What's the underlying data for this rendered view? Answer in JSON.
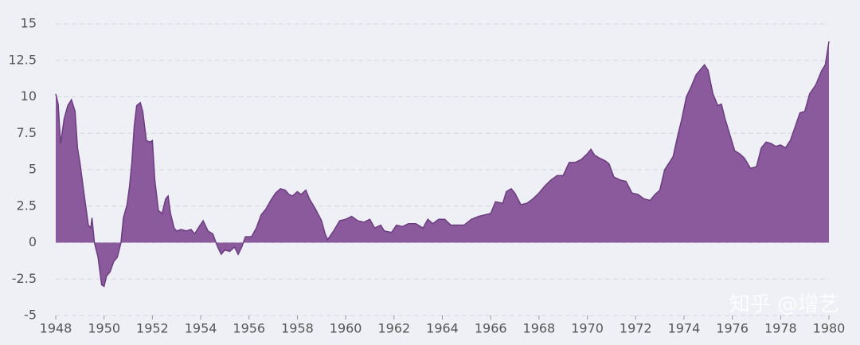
{
  "chart_data": {
    "type": "area",
    "watermark": "知乎 @增艺",
    "color": "#8a5a9c",
    "line_color": "#6b3d80",
    "grid": true,
    "xlim": [
      1948,
      1980
    ],
    "xticks": [
      1948,
      1950,
      1952,
      1954,
      1956,
      1958,
      1960,
      1962,
      1964,
      1966,
      1968,
      1970,
      1972,
      1974,
      1976,
      1978,
      1980
    ],
    "ylim": [
      -5,
      15
    ],
    "yticks": [
      -5,
      -2.5,
      0,
      2.5,
      5,
      7.5,
      10,
      12.5,
      15
    ],
    "x": [
      1948.0,
      1948.1,
      1948.2,
      1948.35,
      1948.5,
      1948.65,
      1948.8,
      1948.9,
      1949.0,
      1949.2,
      1949.35,
      1949.45,
      1949.5,
      1949.6,
      1949.75,
      1949.9,
      1950.0,
      1950.1,
      1950.25,
      1950.4,
      1950.55,
      1950.7,
      1950.8,
      1950.95,
      1951.05,
      1951.15,
      1951.25,
      1951.35,
      1951.5,
      1951.6,
      1951.75,
      1951.9,
      1952.0,
      1952.1,
      1952.25,
      1952.4,
      1952.55,
      1952.65,
      1952.75,
      1952.9,
      1953.0,
      1953.2,
      1953.4,
      1953.6,
      1953.75,
      1953.9,
      1954.1,
      1954.3,
      1954.5,
      1954.7,
      1954.85,
      1955.0,
      1955.2,
      1955.4,
      1955.55,
      1955.7,
      1955.85,
      1956.1,
      1956.3,
      1956.5,
      1956.7,
      1956.9,
      1957.1,
      1957.3,
      1957.5,
      1957.65,
      1957.8,
      1958.0,
      1958.15,
      1958.35,
      1958.5,
      1958.75,
      1959.0,
      1959.15,
      1959.25,
      1959.5,
      1959.75,
      1960.0,
      1960.25,
      1960.5,
      1960.75,
      1961.0,
      1961.2,
      1961.45,
      1961.6,
      1961.9,
      1962.1,
      1962.35,
      1962.6,
      1962.9,
      1963.2,
      1963.4,
      1963.6,
      1963.85,
      1964.1,
      1964.35,
      1964.6,
      1964.9,
      1965.2,
      1965.5,
      1965.75,
      1966.0,
      1966.2,
      1966.5,
      1966.65,
      1966.85,
      1967.0,
      1967.25,
      1967.5,
      1967.75,
      1968.0,
      1968.25,
      1968.5,
      1968.75,
      1969.0,
      1969.25,
      1969.5,
      1969.75,
      1970.0,
      1970.15,
      1970.3,
      1970.5,
      1970.75,
      1970.9,
      1971.1,
      1971.35,
      1971.6,
      1971.85,
      1972.1,
      1972.35,
      1972.6,
      1972.8,
      1973.0,
      1973.2,
      1973.4,
      1973.55,
      1973.75,
      1973.9,
      1974.1,
      1974.3,
      1974.5,
      1974.7,
      1974.85,
      1975.0,
      1975.2,
      1975.4,
      1975.55,
      1975.7,
      1975.9,
      1976.1,
      1976.3,
      1976.5,
      1976.75,
      1977.0,
      1977.2,
      1977.4,
      1977.6,
      1977.8,
      1978.0,
      1978.2,
      1978.4,
      1978.55,
      1978.8,
      1979.0,
      1979.2,
      1979.45,
      1979.7,
      1979.85,
      1980.0
    ],
    "values": [
      10.2,
      9.5,
      6.8,
      8.5,
      9.4,
      9.8,
      9.0,
      6.5,
      5.5,
      3.0,
      1.2,
      1.0,
      1.7,
      0,
      -1.0,
      -2.9,
      -3.0,
      -2.3,
      -2.0,
      -1.3,
      -1.0,
      0,
      1.7,
      2.6,
      3.8,
      5.5,
      8.0,
      9.4,
      9.6,
      9.0,
      7.0,
      6.9,
      7.0,
      4.3,
      2.2,
      2.0,
      3.0,
      3.2,
      2.0,
      1.0,
      0.8,
      0.9,
      0.8,
      0.9,
      0.6,
      1.0,
      1.5,
      0.8,
      0.6,
      -0.3,
      -0.8,
      -0.5,
      -0.6,
      -0.3,
      -0.8,
      -0.3,
      0.4,
      0.4,
      1.0,
      1.9,
      2.3,
      2.9,
      3.4,
      3.7,
      3.6,
      3.3,
      3.2,
      3.5,
      3.3,
      3.6,
      3.0,
      2.3,
      1.5,
      0.6,
      0.2,
      0.8,
      1.5,
      1.6,
      1.8,
      1.5,
      1.4,
      1.6,
      1.0,
      1.2,
      0.8,
      0.7,
      1.2,
      1.1,
      1.3,
      1.3,
      1.0,
      1.6,
      1.3,
      1.6,
      1.6,
      1.2,
      1.2,
      1.2,
      1.6,
      1.8,
      1.9,
      2.0,
      2.8,
      2.7,
      3.5,
      3.7,
      3.4,
      2.6,
      2.7,
      3.0,
      3.4,
      3.9,
      4.3,
      4.6,
      4.6,
      5.5,
      5.5,
      5.7,
      6.1,
      6.4,
      6.0,
      5.8,
      5.6,
      5.4,
      4.5,
      4.3,
      4.2,
      3.4,
      3.3,
      3.0,
      2.9,
      3.3,
      3.6,
      5.0,
      5.5,
      5.9,
      7.4,
      8.4,
      10.0,
      10.7,
      11.5,
      11.9,
      12.2,
      11.8,
      10.2,
      9.4,
      9.5,
      8.5,
      7.4,
      6.3,
      6.1,
      5.8,
      5.1,
      5.2,
      6.5,
      6.9,
      6.8,
      6.6,
      6.7,
      6.5,
      7.0,
      7.7,
      8.9,
      9.0,
      10.2,
      10.8,
      11.8,
      12.2,
      13.8
    ]
  }
}
